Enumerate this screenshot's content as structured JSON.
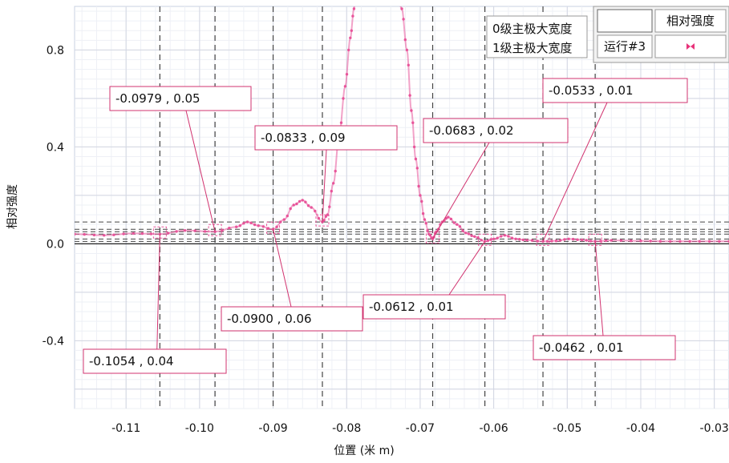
{
  "chart_data": {
    "type": "line",
    "xlabel": "位置 (米 m)",
    "ylabel": "相对强度",
    "xlim": [
      -0.117,
      -0.028
    ],
    "ylim": [
      -0.68,
      0.98
    ],
    "x_ticks": [
      -0.11,
      -0.1,
      -0.09,
      -0.08,
      -0.07,
      -0.06,
      -0.05,
      -0.04,
      -0.03
    ],
    "x_tick_labels": [
      "-0.11",
      "-0.10",
      "-0.09",
      "-0.08",
      "-0.07",
      "-0.06",
      "-0.05",
      "-0.04",
      "-0.03"
    ],
    "y_ticks": [
      -0.4,
      0.0,
      0.4,
      0.8
    ],
    "y_tick_labels": [
      "-0.4",
      "0.0",
      "0.4",
      "0.8"
    ],
    "grid": true,
    "series": [
      {
        "color": "#e8559a",
        "x": [
          -0.117,
          -0.113,
          -0.109,
          -0.1054,
          -0.102,
          -0.0979,
          -0.095,
          -0.0935,
          -0.092,
          -0.09,
          -0.0885,
          -0.0872,
          -0.086,
          -0.0848,
          -0.0833,
          -0.0826,
          -0.0818,
          -0.081,
          -0.0802,
          -0.0795,
          -0.079,
          -0.0786,
          -0.074,
          -0.0725,
          -0.0718,
          -0.0712,
          -0.0706,
          -0.07,
          -0.0694,
          -0.0688,
          -0.0683,
          -0.0678,
          -0.067,
          -0.0662,
          -0.065,
          -0.0638,
          -0.0626,
          -0.0612,
          -0.06,
          -0.0585,
          -0.057,
          -0.0555,
          -0.0533,
          -0.0515,
          -0.0498,
          -0.048,
          -0.0462,
          -0.044,
          -0.04,
          -0.036,
          -0.032,
          -0.028
        ],
        "y": [
          0.04,
          0.035,
          0.043,
          0.04,
          0.055,
          0.05,
          0.07,
          0.09,
          0.075,
          0.06,
          0.1,
          0.16,
          0.18,
          0.15,
          0.09,
          0.12,
          0.25,
          0.45,
          0.65,
          0.85,
          0.97,
          1.2,
          1.2,
          0.97,
          0.8,
          0.55,
          0.35,
          0.2,
          0.1,
          0.04,
          0.02,
          0.05,
          0.09,
          0.11,
          0.08,
          0.045,
          0.03,
          0.01,
          0.02,
          0.035,
          0.02,
          0.015,
          0.01,
          0.012,
          0.02,
          0.016,
          0.01,
          0.014,
          0.012,
          0.01,
          0.01,
          0.01
        ]
      }
    ],
    "annotations": [
      {
        "label": "-0.1054 , 0.04",
        "x": -0.1054,
        "y": 0.04,
        "box_x": -0.1054,
        "box_y": 0.04
      },
      {
        "label": "-0.0979 , 0.05",
        "x": -0.0979,
        "y": 0.05
      },
      {
        "label": "-0.0900 , 0.06",
        "x": -0.09,
        "y": 0.06
      },
      {
        "label": "-0.0833 , 0.09",
        "x": -0.0833,
        "y": 0.09
      },
      {
        "label": "-0.0683 , 0.02",
        "x": -0.0683,
        "y": 0.02
      },
      {
        "label": "-0.0612 , 0.01",
        "x": -0.0612,
        "y": 0.01
      },
      {
        "label": "-0.0533 , 0.01",
        "x": -0.0533,
        "y": 0.01
      },
      {
        "label": "-0.0462 , 0.01",
        "x": -0.0462,
        "y": 0.01
      }
    ],
    "mode_labels": [
      "0级主极大宽度",
      "1级主极大宽度"
    ],
    "legend": {
      "header_label": "相对强度",
      "run_label": "运行#3",
      "placement": "top-right"
    }
  }
}
